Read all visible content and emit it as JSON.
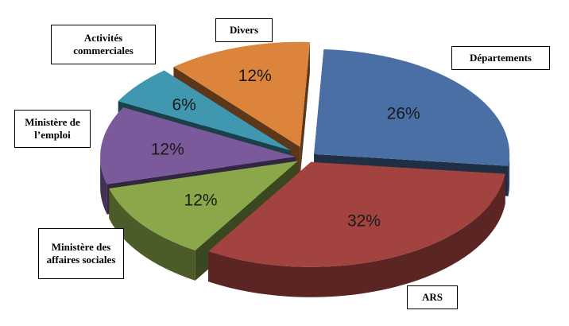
{
  "chart_data": {
    "type": "pie",
    "title": "",
    "exploded": true,
    "three_d": true,
    "slices": [
      {
        "label": "Départements",
        "value": 26,
        "display": "26%",
        "color": "#4a6fa5"
      },
      {
        "label": "ARS",
        "value": 32,
        "display": "32%",
        "color": "#a34340"
      },
      {
        "label": "Ministère des affaires sociales",
        "value": 12,
        "display": "12%",
        "color": "#8aa84a"
      },
      {
        "label": "Ministère de l’emploi",
        "value": 12,
        "display": "12%",
        "color": "#7a5a9a"
      },
      {
        "label": "Activités commerciales",
        "value": 6,
        "display": "6%",
        "color": "#3f98b0"
      },
      {
        "label": "Divers",
        "value": 12,
        "display": "12%",
        "color": "#dc843c"
      }
    ]
  },
  "labels": {
    "departements": "Départements",
    "ars": "ARS",
    "affaires_sociales": "Ministère des affaires sociales",
    "emploi": "Ministère de l’emploi",
    "commerciales": "Activités commerciales",
    "divers": "Divers"
  }
}
